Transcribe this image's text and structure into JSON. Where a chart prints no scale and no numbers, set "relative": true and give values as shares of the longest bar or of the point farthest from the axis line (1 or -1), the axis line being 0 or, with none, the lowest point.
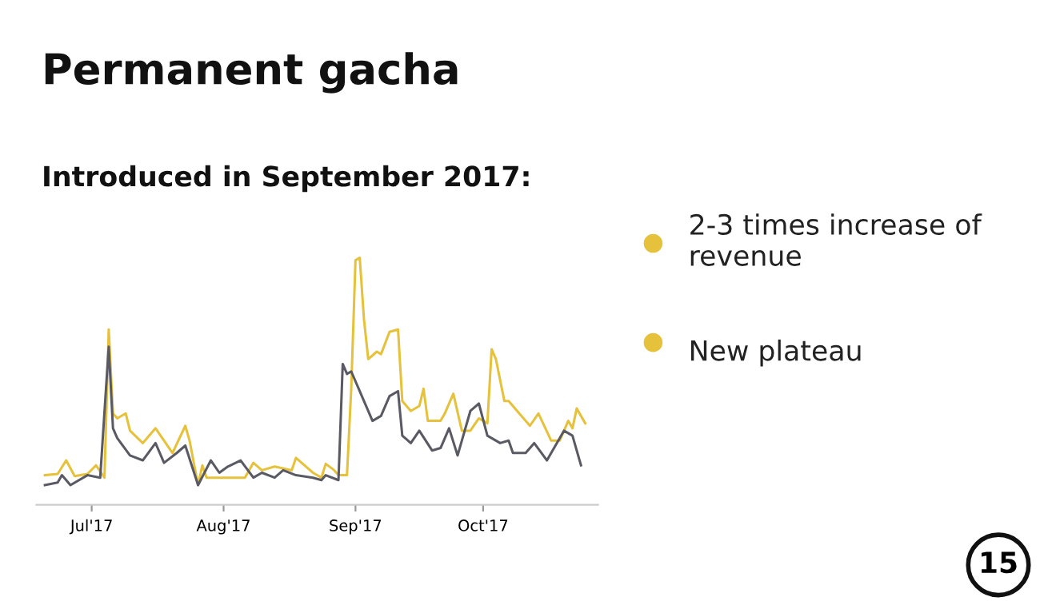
{
  "chart_data": {
    "type": "line",
    "title": "Permanent gacha",
    "subtitle": "Introduced in September 2017:",
    "relative": true,
    "grid": false,
    "line_style": "solid",
    "marker": "none",
    "annotations": [
      "2-3 times increase of revenue",
      "New plateau",
      "15"
    ],
    "xlim": [
      "2017-06-18",
      "2017-10-28"
    ],
    "xticks": [
      {
        "value": "2017-07-01",
        "label": "Jul'17"
      },
      {
        "value": "2017-08-01",
        "label": "Aug'17"
      },
      {
        "value": "2017-09-01",
        "label": "Sep'17"
      },
      {
        "value": "2017-10-01",
        "label": "Oct'17"
      }
    ],
    "series": [
      {
        "color": "#e6c23c",
        "x": [
          "2017-06-20",
          "2017-06-23",
          "2017-06-25",
          "2017-06-27",
          "2017-06-30",
          "2017-07-02",
          "2017-07-04",
          "2017-07-05",
          "2017-07-06",
          "2017-07-07",
          "2017-07-09",
          "2017-07-10",
          "2017-07-13",
          "2017-07-16",
          "2017-07-18",
          "2017-07-20",
          "2017-07-23",
          "2017-07-24",
          "2017-07-26",
          "2017-07-27",
          "2017-07-28",
          "2017-07-30",
          "2017-08-02",
          "2017-08-06",
          "2017-08-07",
          "2017-08-08",
          "2017-08-10",
          "2017-08-13",
          "2017-08-17",
          "2017-08-18",
          "2017-08-20",
          "2017-08-22",
          "2017-08-24",
          "2017-08-25",
          "2017-08-27",
          "2017-08-28",
          "2017-08-30",
          "2017-08-31",
          "2017-09-01",
          "2017-09-02",
          "2017-09-03",
          "2017-09-04",
          "2017-09-06",
          "2017-09-07",
          "2017-09-09",
          "2017-09-11",
          "2017-09-12",
          "2017-09-14",
          "2017-09-16",
          "2017-09-17",
          "2017-09-18",
          "2017-09-21",
          "2017-09-22",
          "2017-09-24",
          "2017-09-26",
          "2017-09-28",
          "2017-09-30",
          "2017-10-02",
          "2017-10-03",
          "2017-10-04",
          "2017-10-06",
          "2017-10-07",
          "2017-10-09",
          "2017-10-12",
          "2017-10-14",
          "2017-10-17",
          "2017-10-19",
          "2017-10-21",
          "2017-10-22",
          "2017-10-23",
          "2017-10-25"
        ],
        "values": [
          0.12,
          0.125,
          0.18,
          0.116,
          0.125,
          0.16,
          0.11,
          0.71,
          0.37,
          0.35,
          0.37,
          0.3,
          0.25,
          0.31,
          0.26,
          0.21,
          0.32,
          0.26,
          0.08,
          0.16,
          0.11,
          0.11,
          0.11,
          0.11,
          0.14,
          0.17,
          0.14,
          0.155,
          0.14,
          0.19,
          0.16,
          0.13,
          0.11,
          0.166,
          0.14,
          0.12,
          0.12,
          0.47,
          0.99,
          1.0,
          0.75,
          0.59,
          0.62,
          0.61,
          0.7,
          0.71,
          0.42,
          0.38,
          0.4,
          0.47,
          0.34,
          0.34,
          0.37,
          0.45,
          0.3,
          0.3,
          0.35,
          0.33,
          0.63,
          0.59,
          0.42,
          0.42,
          0.38,
          0.32,
          0.37,
          0.26,
          0.26,
          0.34,
          0.31,
          0.39,
          0.33
        ]
      },
      {
        "color": "#5a5a64",
        "x": [
          "2017-06-20",
          "2017-06-23",
          "2017-06-24",
          "2017-06-26",
          "2017-06-30",
          "2017-07-03",
          "2017-07-05",
          "2017-07-06",
          "2017-07-07",
          "2017-07-10",
          "2017-07-13",
          "2017-07-16",
          "2017-07-18",
          "2017-07-21",
          "2017-07-23",
          "2017-07-26",
          "2017-07-29",
          "2017-07-31",
          "2017-08-02",
          "2017-08-05",
          "2017-08-08",
          "2017-08-10",
          "2017-08-13",
          "2017-08-15",
          "2017-08-18",
          "2017-08-22",
          "2017-08-24",
          "2017-08-25",
          "2017-08-28",
          "2017-08-29",
          "2017-08-30",
          "2017-08-31",
          "2017-09-03",
          "2017-09-05",
          "2017-09-07",
          "2017-09-09",
          "2017-09-11",
          "2017-09-12",
          "2017-09-14",
          "2017-09-16",
          "2017-09-19",
          "2017-09-21",
          "2017-09-23",
          "2017-09-25",
          "2017-09-28",
          "2017-09-30",
          "2017-10-02",
          "2017-10-05",
          "2017-10-07",
          "2017-10-08",
          "2017-10-11",
          "2017-10-13",
          "2017-10-16",
          "2017-10-20",
          "2017-10-22",
          "2017-10-24"
        ],
        "values": [
          0.08,
          0.09,
          0.12,
          0.08,
          0.12,
          0.11,
          0.64,
          0.31,
          0.27,
          0.2,
          0.18,
          0.25,
          0.17,
          0.21,
          0.24,
          0.08,
          0.18,
          0.13,
          0.155,
          0.18,
          0.11,
          0.13,
          0.11,
          0.14,
          0.12,
          0.11,
          0.1,
          0.12,
          0.1,
          0.57,
          0.53,
          0.54,
          0.42,
          0.34,
          0.36,
          0.44,
          0.46,
          0.28,
          0.25,
          0.3,
          0.22,
          0.23,
          0.31,
          0.2,
          0.38,
          0.41,
          0.28,
          0.25,
          0.26,
          0.21,
          0.21,
          0.25,
          0.18,
          0.3,
          0.28,
          0.16
        ]
      }
    ]
  }
}
